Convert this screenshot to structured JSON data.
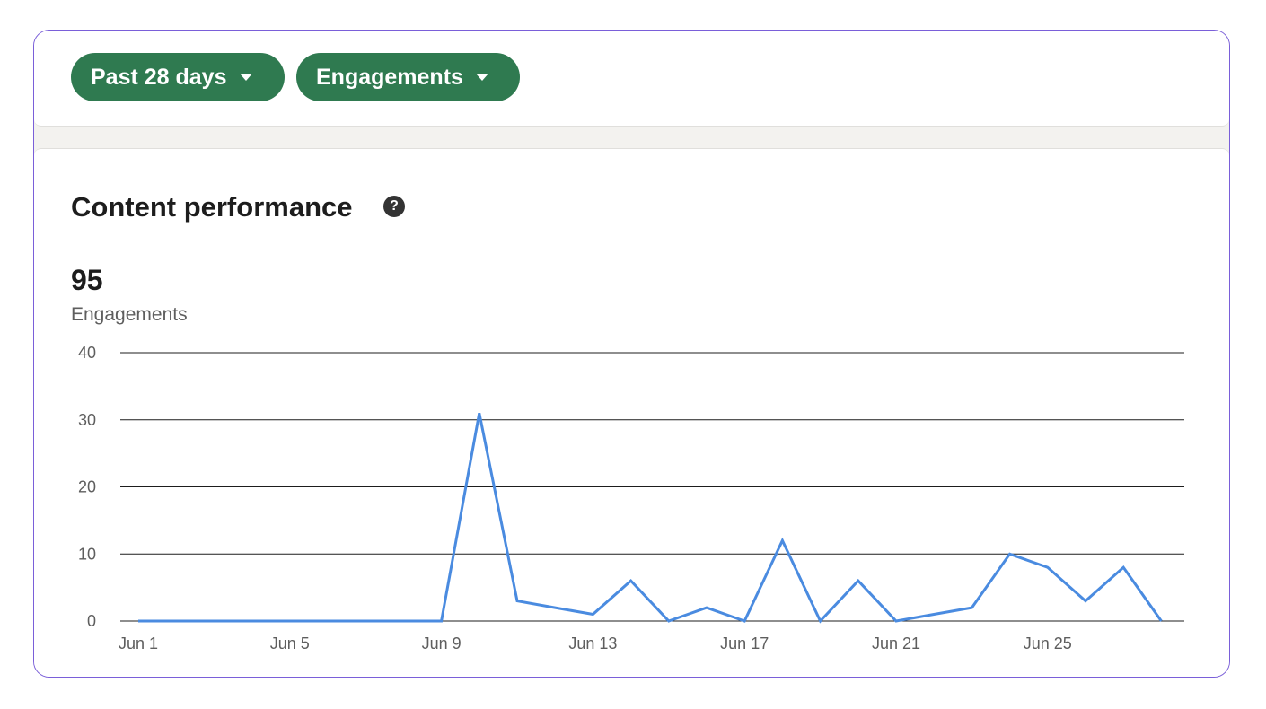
{
  "filters": {
    "range_label": "Past 28 days",
    "metric_label": "Engagements"
  },
  "card": {
    "title": "Content performance",
    "help_icon": "question-circle-icon",
    "total": "95",
    "total_label": "Engagements"
  },
  "colors": {
    "pill": "#2f7a50",
    "line": "#4a8be0",
    "frame": "#7a5fd9"
  },
  "chart_data": {
    "type": "line",
    "x": [
      "Jun 1",
      "Jun 2",
      "Jun 3",
      "Jun 4",
      "Jun 5",
      "Jun 6",
      "Jun 7",
      "Jun 8",
      "Jun 9",
      "Jun 10",
      "Jun 11",
      "Jun 12",
      "Jun 13",
      "Jun 14",
      "Jun 15",
      "Jun 16",
      "Jun 17",
      "Jun 18",
      "Jun 19",
      "Jun 20",
      "Jun 21",
      "Jun 22",
      "Jun 23",
      "Jun 24",
      "Jun 25",
      "Jun 26",
      "Jun 27",
      "Jun 28"
    ],
    "x_tick_labels": [
      "Jun 1",
      "Jun 5",
      "Jun 9",
      "Jun 13",
      "Jun 17",
      "Jun 21",
      "Jun 25"
    ],
    "series": [
      {
        "values": [
          0,
          0,
          0,
          0,
          0,
          0,
          0,
          0,
          0,
          31,
          3,
          2,
          1,
          6,
          0,
          2,
          0,
          12,
          0,
          6,
          0,
          1,
          2,
          10,
          8,
          3,
          8,
          0
        ]
      }
    ],
    "y_ticks": [
      0,
      10,
      20,
      30,
      40
    ],
    "ylim": [
      0,
      40
    ],
    "grid": true,
    "legend": "none"
  }
}
